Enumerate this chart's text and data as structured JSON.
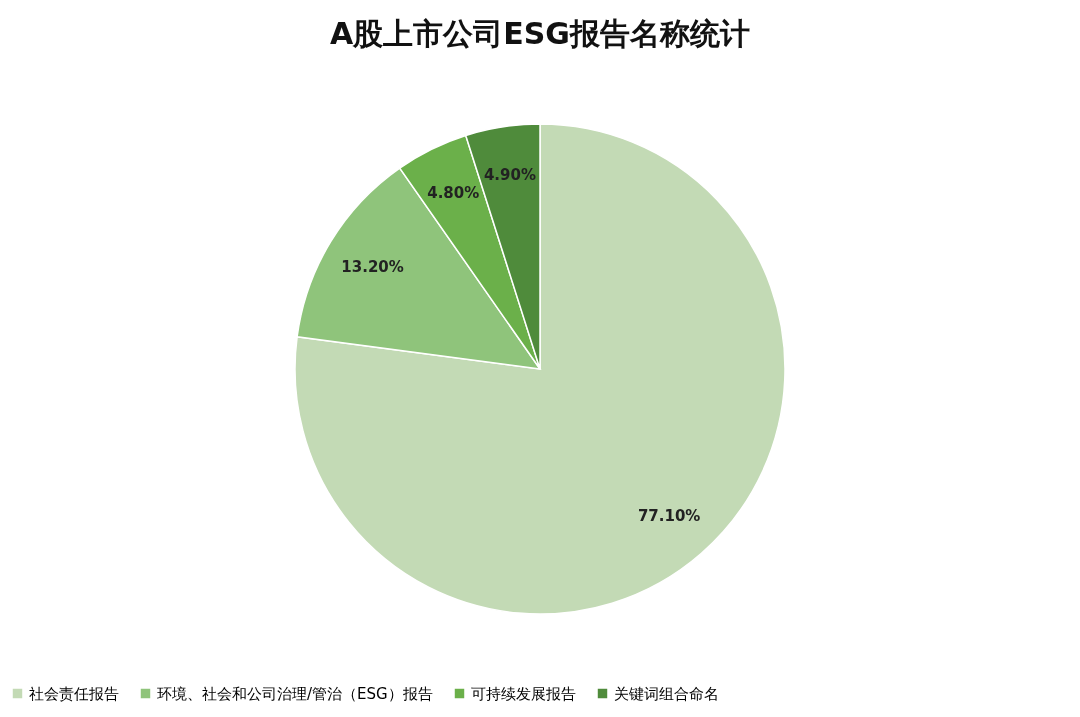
{
  "chart_data": {
    "type": "pie",
    "title": "A股上市公司ESG报告名称统计",
    "categories": [
      "社会责任报告",
      "环境、社会和公司治理/管治（ESG）报告",
      "可持续发展报告",
      "关键词组合命名"
    ],
    "values": [
      77.1,
      13.2,
      4.8,
      4.9
    ],
    "colors": [
      "#c3dab5",
      "#8fc47b",
      "#6bb04a",
      "#4f8b3b"
    ],
    "value_labels": [
      "77.10%",
      "13.20%",
      "4.80%",
      "4.90%"
    ],
    "legend": "bottom"
  }
}
